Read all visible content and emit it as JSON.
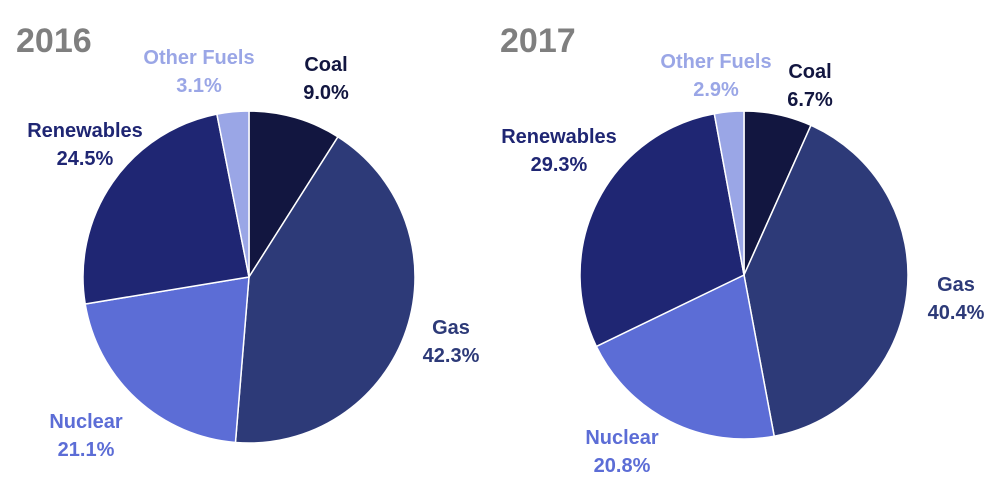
{
  "colors": {
    "coal": "#121640",
    "gas": "#2d3a78",
    "nuclear": "#5c6dd6",
    "renewables": "#1f2673",
    "other_fuels": "#9aa6e6"
  },
  "chart_data": [
    {
      "type": "pie",
      "title": "2016",
      "slices": [
        {
          "key": "coal",
          "label": "Coal",
          "value": 9.0,
          "value_label": "9.0%"
        },
        {
          "key": "gas",
          "label": "Gas",
          "value": 42.3,
          "value_label": "42.3%"
        },
        {
          "key": "nuclear",
          "label": "Nuclear",
          "value": 21.1,
          "value_label": "21.1%"
        },
        {
          "key": "renewables",
          "label": "Renewables",
          "value": 24.5,
          "value_label": "24.5%"
        },
        {
          "key": "other_fuels",
          "label": "Other Fuels",
          "value": 3.1,
          "value_label": "3.1%"
        }
      ]
    },
    {
      "type": "pie",
      "title": "2017",
      "slices": [
        {
          "key": "coal",
          "label": "Coal",
          "value": 6.7,
          "value_label": "6.7%"
        },
        {
          "key": "gas",
          "label": "Gas",
          "value": 40.4,
          "value_label": "40.4%"
        },
        {
          "key": "nuclear",
          "label": "Nuclear",
          "value": 20.8,
          "value_label": "20.8%"
        },
        {
          "key": "renewables",
          "label": "Renewables",
          "value": 29.3,
          "value_label": "29.3%"
        },
        {
          "key": "other_fuels",
          "label": "Other Fuels",
          "value": 2.9,
          "value_label": "2.9%"
        }
      ]
    }
  ]
}
